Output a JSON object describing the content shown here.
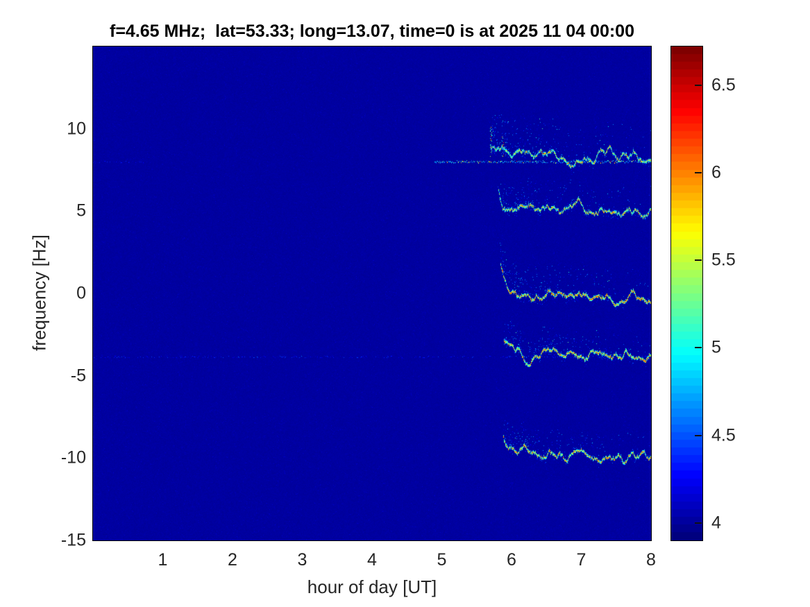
{
  "figure": {
    "title": "f=4.65 MHz;  lat=53.33; long=13.07, time=0 is at 2025 11 04 00:00"
  },
  "colors": {
    "figure_bg": "#ffffff",
    "axis_text": "#262626",
    "title_text": "#000000",
    "plot_border": "#000000",
    "background_deep_blue": "#0000a0",
    "colormap_low": "#000080",
    "colormap_high": "#800000"
  },
  "chart_data": {
    "type": "heatmap",
    "subtype": "doppler-spectrogram",
    "title": "f=4.65 MHz;  lat=53.33; long=13.07, time=0 is at 2025 11 04 00:00",
    "xlabel": "hour of day [UT]",
    "ylabel": "frequency [Hz]",
    "xlim": [
      0,
      8
    ],
    "ylim": [
      -15,
      15
    ],
    "xticks": [
      1,
      2,
      3,
      4,
      5,
      6,
      7,
      8
    ],
    "yticks": [
      10,
      5,
      0,
      -5,
      -10,
      -15
    ],
    "grid": false,
    "colormap": "jet",
    "colorbar": {
      "position": "right",
      "min": 3.9,
      "max": 6.72,
      "ticks": [
        4,
        4.5,
        5,
        5.5,
        6,
        6.5
      ],
      "steps": 64
    },
    "background_value": 3.99,
    "background_noise": 0.05,
    "faint_traces": [
      {
        "label": "faint 8 Hz remnant",
        "f": 8.0,
        "from": 0.0,
        "to": 0.75,
        "p": 0.35,
        "vmin": 4.05,
        "vmax": 4.4
      },
      {
        "label": "faint -3.8 Hz line",
        "f": -3.85,
        "from": 0.0,
        "to": 8.0,
        "p": 0.32,
        "vmin": 4.05,
        "vmax": 4.45
      }
    ],
    "bands": [
      {
        "label": "trace +8 Hz",
        "f_base": 8.3,
        "f_onset": 8.75,
        "onset_hour": 5.7,
        "end_hour": 8,
        "drift": -0.07,
        "core_min": 5.2,
        "core_max": 6.3,
        "scatter_above": 2.0,
        "scatter_density": 0.9,
        "seed": 11,
        "streaks": [
          {
            "hour": 5.7,
            "f_top": 10.2
          },
          {
            "hour": 5.87,
            "f_top": 9.7
          }
        ],
        "pre_trace": {
          "from": 4.9,
          "to": 8.0,
          "f": 8.02,
          "p": 0.85,
          "vmin": 4.35,
          "vmax": 5.3
        }
      },
      {
        "label": "trace +5 Hz",
        "f_base": 5.1,
        "f_onset": 6.3,
        "onset_hour": 5.81,
        "end_hour": 8,
        "drift": -0.12,
        "core_min": 5.3,
        "core_max": 6.4,
        "scatter_above": 1.5,
        "scatter_density": 0.8,
        "seed": 22
      },
      {
        "label": "trace 0 Hz",
        "f_base": 0.15,
        "f_onset": 1.65,
        "onset_hour": 5.84,
        "end_hour": 8,
        "drift": -0.18,
        "core_min": 5.6,
        "core_max": 6.6,
        "scatter_above": 1.6,
        "scatter_density": 0.9,
        "seed": 33
      },
      {
        "label": "trace -3.5 Hz",
        "f_base": -3.5,
        "f_onset": -2.55,
        "onset_hour": 5.89,
        "end_hour": 8,
        "drift": -0.14,
        "core_min": 5.5,
        "core_max": 6.5,
        "scatter_above": 1.3,
        "scatter_density": 0.8,
        "seed": 44
      },
      {
        "label": "trace -10 Hz",
        "f_base": -9.8,
        "f_onset": -8.8,
        "onset_hour": 5.88,
        "end_hour": 8,
        "drift": -0.14,
        "core_min": 5.4,
        "core_max": 6.5,
        "scatter_above": 1.4,
        "scatter_density": 0.85,
        "seed": 55
      }
    ]
  }
}
